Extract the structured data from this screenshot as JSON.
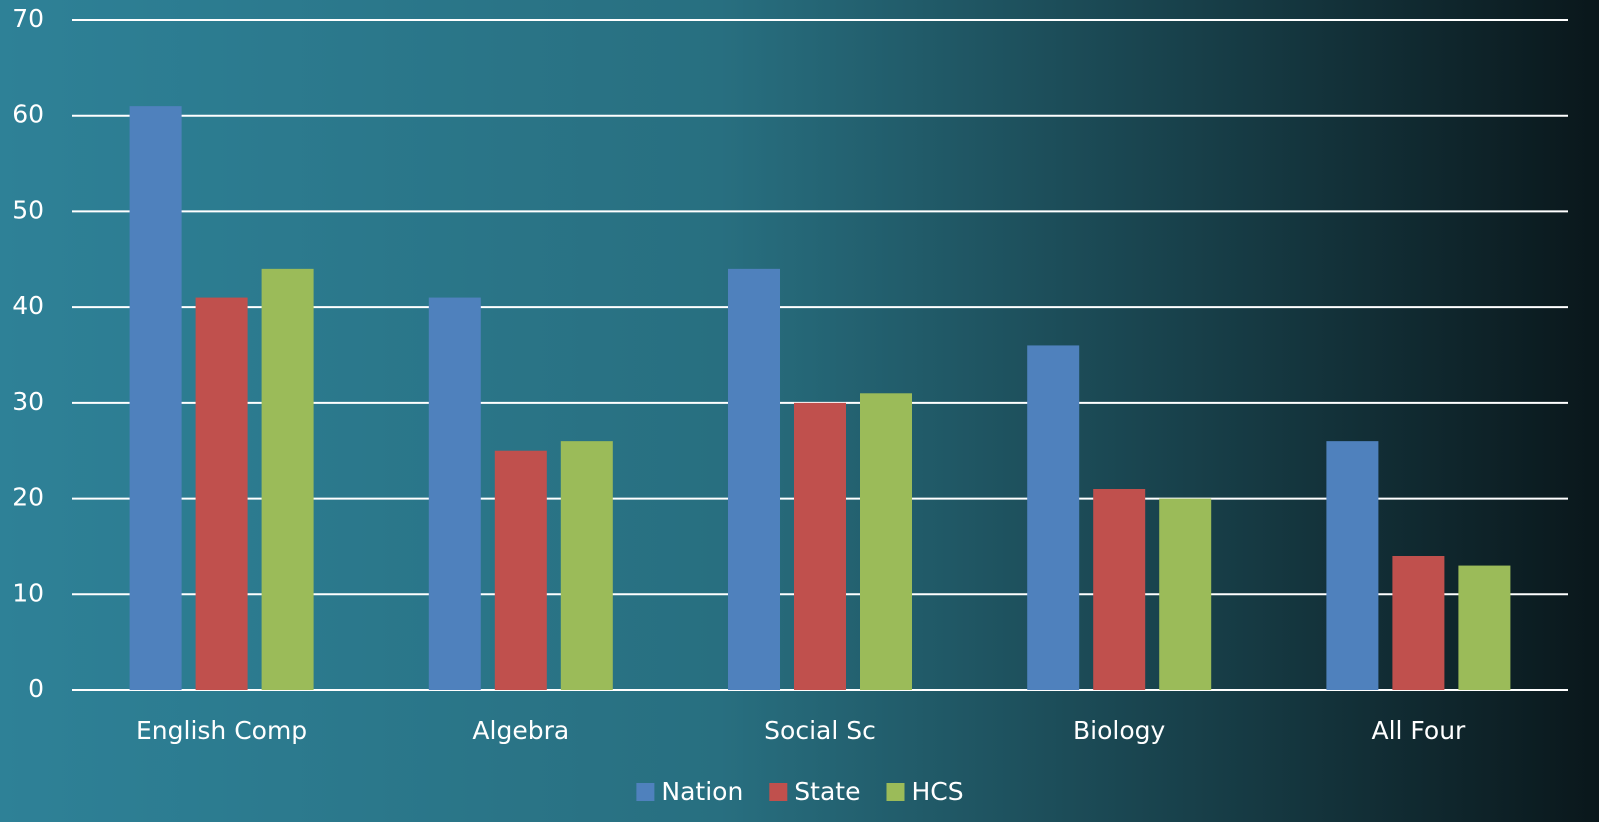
{
  "chart_data": {
    "type": "bar",
    "categories": [
      "English Comp",
      "Algebra",
      "Social Sc",
      "Biology",
      "All Four"
    ],
    "series": [
      {
        "name": "Nation",
        "color": "#4f81bd",
        "values": [
          61,
          41,
          44,
          36,
          26
        ]
      },
      {
        "name": "State",
        "color": "#c0504d",
        "values": [
          41,
          25,
          30,
          21,
          14
        ]
      },
      {
        "name": "HCS",
        "color": "#9bbb59",
        "values": [
          44,
          26,
          31,
          20,
          13
        ]
      }
    ],
    "ylim": [
      0,
      70
    ],
    "yticks": [
      0,
      10,
      20,
      30,
      40,
      50,
      60,
      70
    ],
    "grid": true,
    "legend": "bottom"
  }
}
